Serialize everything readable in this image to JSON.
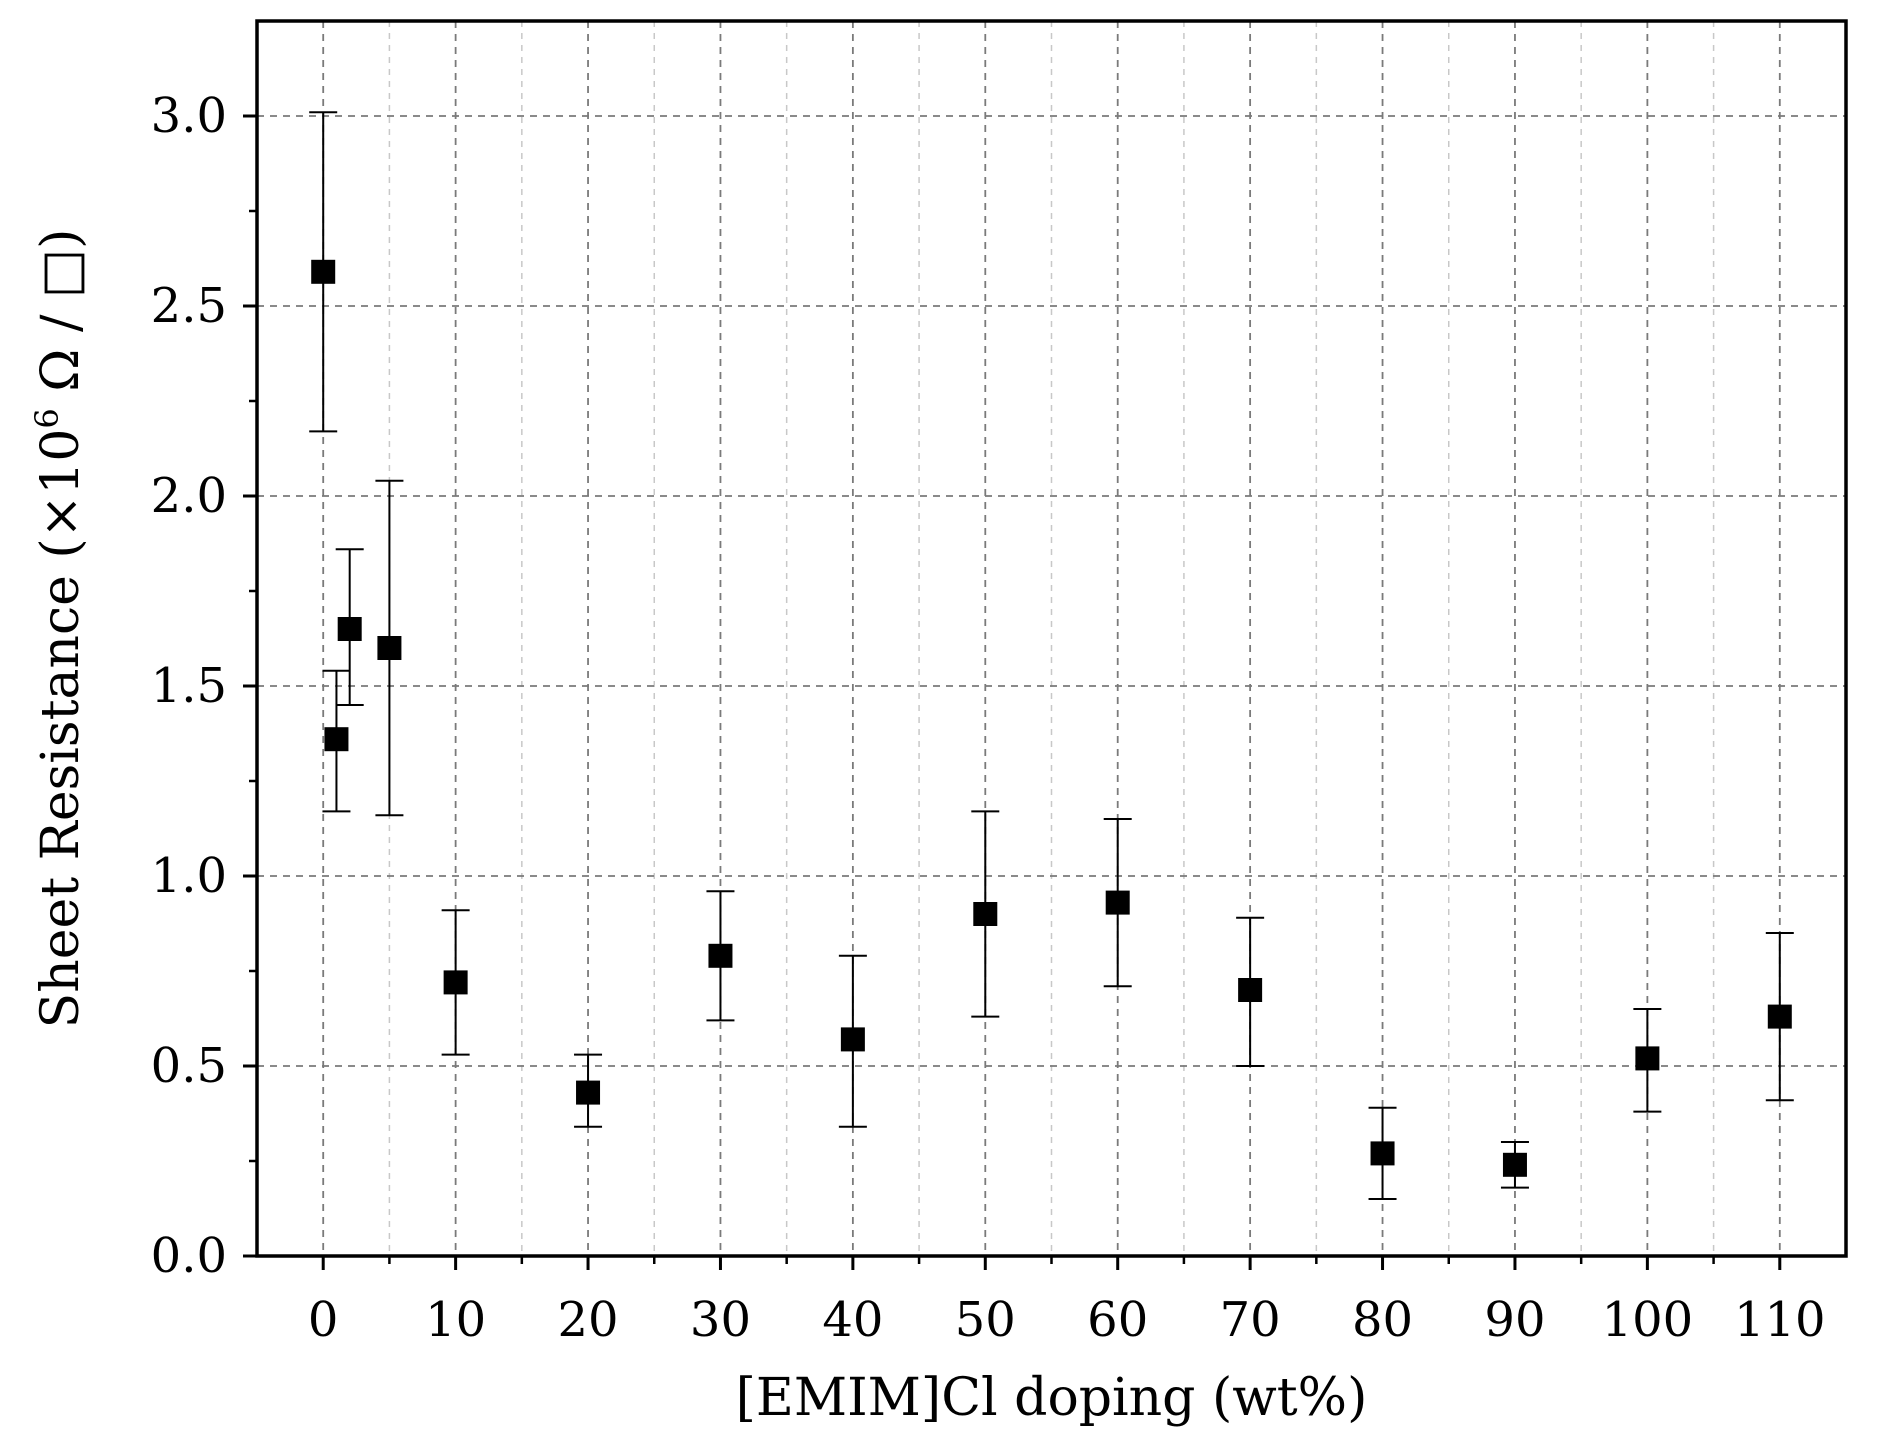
{
  "chart_data": {
    "type": "scatter",
    "title": "",
    "xlabel": "[EMIM]Cl doping (wt%)",
    "ylabel": {
      "prefix": "Sheet Resistance (×10",
      "exponent": "6",
      "suffix": " Ω / □)"
    },
    "xlim": [
      -5,
      115
    ],
    "ylim": [
      0,
      3.25
    ],
    "x_ticks": [
      0,
      10,
      20,
      30,
      40,
      50,
      60,
      70,
      80,
      90,
      100,
      110
    ],
    "x_tick_labels": [
      "0",
      "10",
      "20",
      "30",
      "40",
      "50",
      "60",
      "70",
      "80",
      "90",
      "100",
      "110"
    ],
    "y_ticks": [
      0,
      0.5,
      1.0,
      1.5,
      2.0,
      2.5,
      3.0
    ],
    "y_tick_labels": [
      "0.0",
      "0.5",
      "1.0",
      "1.5",
      "2.0",
      "2.5",
      "3.0"
    ],
    "x_minor_grid": [
      5,
      15,
      25,
      35,
      45,
      55,
      65,
      75,
      85,
      95,
      105
    ],
    "grid": true,
    "legend": "none",
    "series": [
      {
        "name": "Sheet Resistance",
        "marker": "square",
        "color": "#000000",
        "x": [
          0,
          1,
          2,
          5,
          10,
          20,
          30,
          40,
          50,
          60,
          70,
          80,
          90,
          100,
          110
        ],
        "y": [
          2.59,
          1.36,
          1.65,
          1.6,
          0.72,
          0.43,
          0.79,
          0.57,
          0.9,
          0.93,
          0.7,
          0.27,
          0.24,
          0.52,
          0.63
        ],
        "y_low": [
          2.17,
          1.17,
          1.45,
          1.16,
          0.53,
          0.34,
          0.62,
          0.34,
          0.63,
          0.71,
          0.5,
          0.15,
          0.18,
          0.38,
          0.41
        ],
        "y_high": [
          3.01,
          1.54,
          1.86,
          2.04,
          0.91,
          0.53,
          0.96,
          0.79,
          1.17,
          1.15,
          0.89,
          0.39,
          0.3,
          0.65,
          0.85
        ]
      }
    ]
  }
}
